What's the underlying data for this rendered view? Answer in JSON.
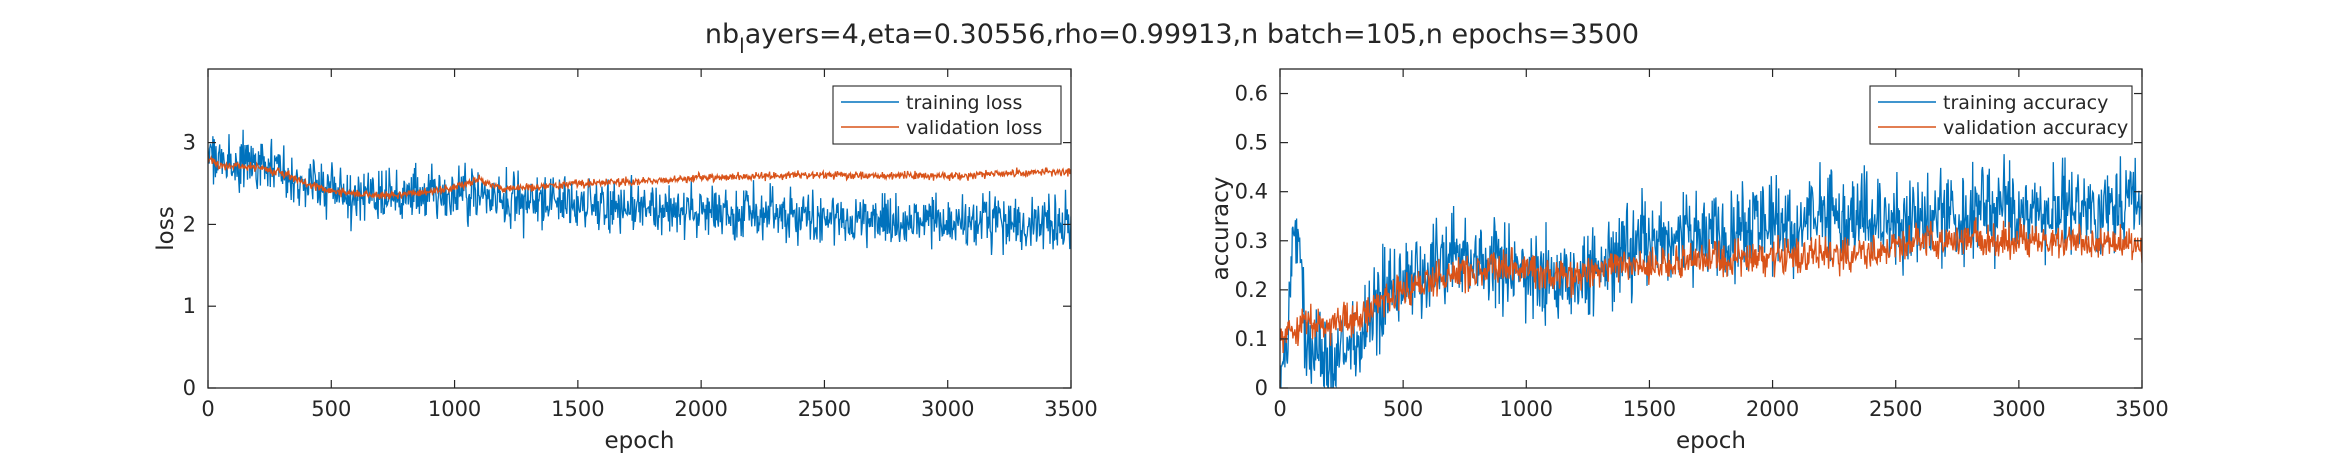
{
  "figure": {
    "title_main": "nb",
    "title_sub": "l",
    "title_rest": "ayers=4,eta=0.30556,rho=0.99913,n batch=105,n epochs=3500"
  },
  "colors": {
    "training": "#0072BD",
    "validation": "#D95319",
    "axis": "#262626"
  },
  "chart_data": [
    {
      "type": "line",
      "xlabel": "epoch",
      "ylabel": "loss",
      "xlim": [
        0,
        3500
      ],
      "ylim": [
        0,
        3.9
      ],
      "xticks": [
        0,
        500,
        1000,
        1500,
        2000,
        2500,
        3000,
        3500
      ],
      "yticks": [
        0,
        1,
        2,
        3
      ],
      "grid": false,
      "legend_position": "top-right",
      "series": [
        {
          "name": "training loss",
          "noise": 0.16,
          "x": [
            0,
            50,
            100,
            200,
            300,
            400,
            500,
            600,
            700,
            800,
            900,
            1000,
            1100,
            1200,
            1300,
            1400,
            1500,
            1700,
            2000,
            2300,
            2500,
            2800,
            3000,
            3200,
            3500
          ],
          "y": [
            2.9,
            2.75,
            2.75,
            2.72,
            2.65,
            2.55,
            2.42,
            2.38,
            2.35,
            2.36,
            2.38,
            2.37,
            2.4,
            2.33,
            2.28,
            2.27,
            2.25,
            2.2,
            2.14,
            2.1,
            2.07,
            2.05,
            2.05,
            2.03,
            2.0
          ]
        },
        {
          "name": "validation loss",
          "noise": 0.025,
          "x": [
            0,
            50,
            100,
            200,
            300,
            400,
            500,
            600,
            700,
            800,
            900,
            1000,
            1100,
            1200,
            1300,
            1400,
            1500,
            1700,
            2000,
            2300,
            2500,
            2800,
            3000,
            3200,
            3500
          ],
          "y": [
            2.8,
            2.72,
            2.72,
            2.7,
            2.63,
            2.5,
            2.42,
            2.37,
            2.35,
            2.37,
            2.4,
            2.45,
            2.55,
            2.43,
            2.45,
            2.47,
            2.5,
            2.52,
            2.57,
            2.6,
            2.6,
            2.6,
            2.58,
            2.62,
            2.65
          ]
        }
      ]
    },
    {
      "type": "line",
      "xlabel": "epoch",
      "ylabel": "accuracy",
      "xlim": [
        0,
        3500
      ],
      "ylim": [
        0,
        0.65
      ],
      "xticks": [
        0,
        500,
        1000,
        1500,
        2000,
        2500,
        3000,
        3500
      ],
      "yticks": [
        0,
        0.1,
        0.2,
        0.3,
        0.4,
        0.5,
        0.6
      ],
      "grid": false,
      "legend_position": "top-right",
      "series": [
        {
          "name": "training accuracy",
          "noise": 0.045,
          "x": [
            0,
            30,
            60,
            80,
            100,
            150,
            200,
            250,
            300,
            350,
            400,
            500,
            600,
            700,
            800,
            900,
            1000,
            1100,
            1200,
            1300,
            1500,
            1700,
            2000,
            2300,
            2500,
            3000,
            3500
          ],
          "y": [
            0.02,
            0.12,
            0.3,
            0.3,
            0.08,
            0.06,
            0.05,
            0.07,
            0.1,
            0.12,
            0.18,
            0.22,
            0.25,
            0.27,
            0.26,
            0.25,
            0.24,
            0.22,
            0.23,
            0.26,
            0.3,
            0.31,
            0.33,
            0.34,
            0.34,
            0.36,
            0.37
          ]
        },
        {
          "name": "validation accuracy",
          "noise": 0.018,
          "x": [
            0,
            30,
            100,
            200,
            300,
            350,
            400,
            500,
            600,
            700,
            800,
            900,
            1000,
            1100,
            1200,
            1300,
            1400,
            1500,
            1700,
            2000,
            2200,
            2400,
            2600,
            3000,
            3200,
            3500
          ],
          "y": [
            0.1,
            0.12,
            0.13,
            0.13,
            0.14,
            0.15,
            0.18,
            0.2,
            0.22,
            0.23,
            0.24,
            0.25,
            0.24,
            0.23,
            0.23,
            0.24,
            0.25,
            0.25,
            0.26,
            0.27,
            0.27,
            0.28,
            0.3,
            0.3,
            0.3,
            0.29
          ]
        }
      ]
    }
  ]
}
